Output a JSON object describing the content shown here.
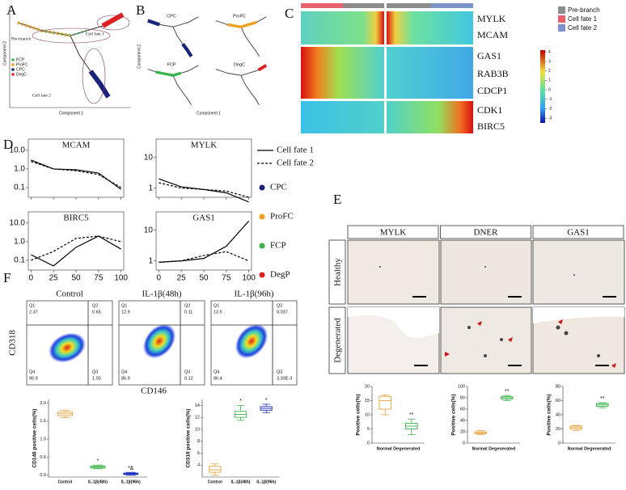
{
  "panel_labels": [
    "A",
    "B",
    "C",
    "D",
    "E",
    "F"
  ],
  "A": {
    "branch_labels": [
      "Pre-branch",
      "Cell fate 1",
      "Cell fate 2"
    ],
    "legend": [
      {
        "name": "FCP",
        "color": "#3cb44b"
      },
      {
        "name": "ProFC",
        "color": "#f0a020"
      },
      {
        "name": "CPC",
        "color": "#1a237e"
      },
      {
        "name": "DegC",
        "color": "#e02020"
      }
    ],
    "xlabel": "Component 1",
    "ylabel": "Component 2"
  },
  "B": {
    "titles": [
      {
        "name": "CPC",
        "color": "#1a237e"
      },
      {
        "name": "ProFC",
        "color": "#f0a020"
      },
      {
        "name": "FCP",
        "color": "#3cb44b"
      },
      {
        "name": "DegC",
        "color": "#e02020"
      }
    ],
    "xlabel": "Component 1",
    "ylabel": "Component 2"
  },
  "C": {
    "genes": [
      "MYLK",
      "MCAM",
      "GAS1",
      "RAB3B",
      "CDCP1",
      "CDK1",
      "BIRC5"
    ],
    "legend": [
      {
        "name": "Pre-branch",
        "color": "#8c8c8c"
      },
      {
        "name": "Cell fate 1",
        "color": "#e8606a"
      },
      {
        "name": "Cell fate 2",
        "color": "#7b93c8"
      }
    ],
    "colorbar": {
      "lim": [
        -3.5,
        4.2
      ],
      "ticks": [
        4,
        3,
        2,
        1,
        0,
        -1,
        -2,
        -3
      ]
    }
  },
  "D": {
    "xlim": [
      -3,
      103
    ],
    "xticks": [
      0,
      25,
      50,
      75,
      100
    ],
    "x": [
      0,
      25,
      50,
      75,
      100
    ],
    "legend_lines": [
      "Cell fate 1",
      "Cell fate 2"
    ],
    "legend_groups": [
      {
        "name": "CPC",
        "color": "#1a237e"
      },
      {
        "name": "ProFC",
        "color": "#f0a020"
      },
      {
        "name": "FCP",
        "color": "#3cb44b"
      },
      {
        "name": "DegP",
        "color": "#e02020"
      }
    ],
    "plots": [
      {
        "title": "MCAM",
        "ylim": [
          0.03,
          40
        ],
        "yticks": [
          {
            "value": 10,
            "label": "10.0"
          },
          {
            "value": 1,
            "label": "1.0"
          },
          0.1
        ],
        "fate1": [
          3,
          1.0,
          0.9,
          0.6,
          0.08
        ],
        "fate2": [
          2.5,
          1.0,
          0.8,
          0.5,
          0.1
        ]
      },
      {
        "title": "MYLK",
        "ylim": [
          0.5,
          40
        ],
        "yticks": [
          10,
          1
        ],
        "fate1": [
          2,
          1.1,
          0.9,
          0.7,
          0.35
        ],
        "fate2": [
          1.5,
          1.0,
          0.9,
          0.8,
          0.5
        ]
      },
      {
        "title": "BIRC5",
        "ylim": [
          0.03,
          40
        ],
        "yticks": [
          {
            "value": 10,
            "label": "10.0"
          },
          {
            "value": 1,
            "label": "1.0"
          },
          0.1
        ],
        "fate1": [
          0.2,
          0.05,
          0.5,
          2,
          0.4
        ],
        "fate2": [
          0.1,
          0.3,
          1.5,
          2.0,
          1.0
        ]
      },
      {
        "title": "GAS1",
        "ylim": [
          0.5,
          40
        ],
        "yticks": [
          10,
          1
        ],
        "fate1": [
          0.9,
          1.0,
          1.2,
          3,
          20
        ],
        "fate2": [
          0.9,
          1.0,
          1.5,
          2,
          1
        ]
      }
    ]
  },
  "E": {
    "columns": [
      "MYLK",
      "DNER",
      "GAS1"
    ],
    "rows": [
      "Healthy",
      "Degenerated"
    ],
    "box_plots": [
      {
        "ylabel": "Positive cells(%)",
        "xlabel": "Normal Degenerated",
        "ylim": [
          0,
          20
        ],
        "yticks": [
          0,
          5,
          10,
          15,
          20
        ],
        "boxes": [
          {
            "min": 10,
            "q1": 12,
            "median": 15,
            "q3": 16.5,
            "max": 17,
            "color": "#e6a23c"
          },
          {
            "min": 3,
            "q1": 5,
            "median": 6,
            "q3": 7,
            "max": 8.5,
            "color": "#3cb44b",
            "mark": "**"
          }
        ]
      },
      {
        "ylabel": "Positive cells(%)",
        "xlabel": "Normal Degenerated",
        "ylim": [
          0,
          100
        ],
        "yticks": [
          0,
          20,
          40,
          60,
          80,
          100
        ],
        "boxes": [
          {
            "min": 15,
            "q1": 17,
            "median": 18,
            "q3": 20,
            "max": 22,
            "color": "#e6a23c"
          },
          {
            "min": 75,
            "q1": 78,
            "median": 80,
            "q3": 82,
            "max": 84,
            "color": "#3cb44b",
            "mark": "**"
          }
        ]
      },
      {
        "ylabel": "Positive cells(%)",
        "xlabel": "Normal Degenerated",
        "ylim": [
          0,
          80
        ],
        "yticks": [
          0,
          20,
          40,
          60,
          80
        ],
        "boxes": [
          {
            "min": 18,
            "q1": 20,
            "median": 22,
            "q3": 24,
            "max": 25,
            "color": "#e6a23c"
          },
          {
            "min": 50,
            "q1": 52,
            "median": 54,
            "q3": 56,
            "max": 57,
            "color": "#3cb44b",
            "mark": "**"
          }
        ]
      }
    ]
  },
  "F": {
    "titles": [
      "Control",
      "IL-1β(48h)",
      "IL-1β(96h)"
    ],
    "ylabel": "CD318",
    "xlabel": "CD146",
    "quadrants": [
      "Q1",
      "Q2",
      "Q4",
      "Q3"
    ],
    "values": [
      [
        2.37,
        0.65,
        95.9,
        1.03
      ],
      [
        12.9,
        0.11,
        86.9,
        0.12
      ],
      [
        13.5,
        0.037,
        86.4,
        {
          "value": 0.00333,
          "label": "3.33E-3"
        }
      ]
    ],
    "box_plots": [
      {
        "ylabel": "CD146 positive cells(%)",
        "categories": [
          "Control",
          "IL-1β(48h)",
          "IL-1β(96h)"
        ],
        "ylim": [
          -0.05,
          2.1
        ],
        "yticks": [
          {
            "value": 0,
            "label": "0.0"
          },
          0.5,
          {
            "value": 1,
            "label": "1.0"
          },
          1.5,
          {
            "value": 2,
            "label": "2.0"
          }
        ],
        "boxes": [
          {
            "min": 1.6,
            "q1": 1.65,
            "median": 1.7,
            "q3": 1.75,
            "max": 1.8,
            "color": "#e6a23c"
          },
          {
            "min": 0.18,
            "q1": 0.2,
            "median": 0.23,
            "q3": 0.26,
            "max": 0.28,
            "color": "#3cb44b",
            "mark": "*"
          },
          {
            "min": 0.0,
            "q1": 0.02,
            "median": 0.04,
            "q3": 0.06,
            "max": 0.08,
            "color": "#2030c0",
            "mark": "*&"
          }
        ]
      },
      {
        "ylabel": "CD318 positive cells(%)",
        "categories": [
          "Control",
          "IL-1β(48h)",
          "IL-1β(96h)"
        ],
        "ylim": [
          2,
          15
        ],
        "yticks": [
          4,
          6,
          8,
          10,
          12,
          14
        ],
        "boxes": [
          {
            "min": 2.3,
            "q1": 2.8,
            "median": 3.2,
            "q3": 3.8,
            "max": 4.2,
            "color": "#e6a23c"
          },
          {
            "min": 11.5,
            "q1": 12,
            "median": 12.5,
            "q3": 13,
            "max": 14,
            "color": "#3cb44b",
            "mark": "*"
          },
          {
            "min": 12.8,
            "q1": 13.2,
            "median": 13.5,
            "q3": 13.8,
            "max": 14.2,
            "color": "#2030c0",
            "mark": "*"
          }
        ]
      }
    ]
  }
}
